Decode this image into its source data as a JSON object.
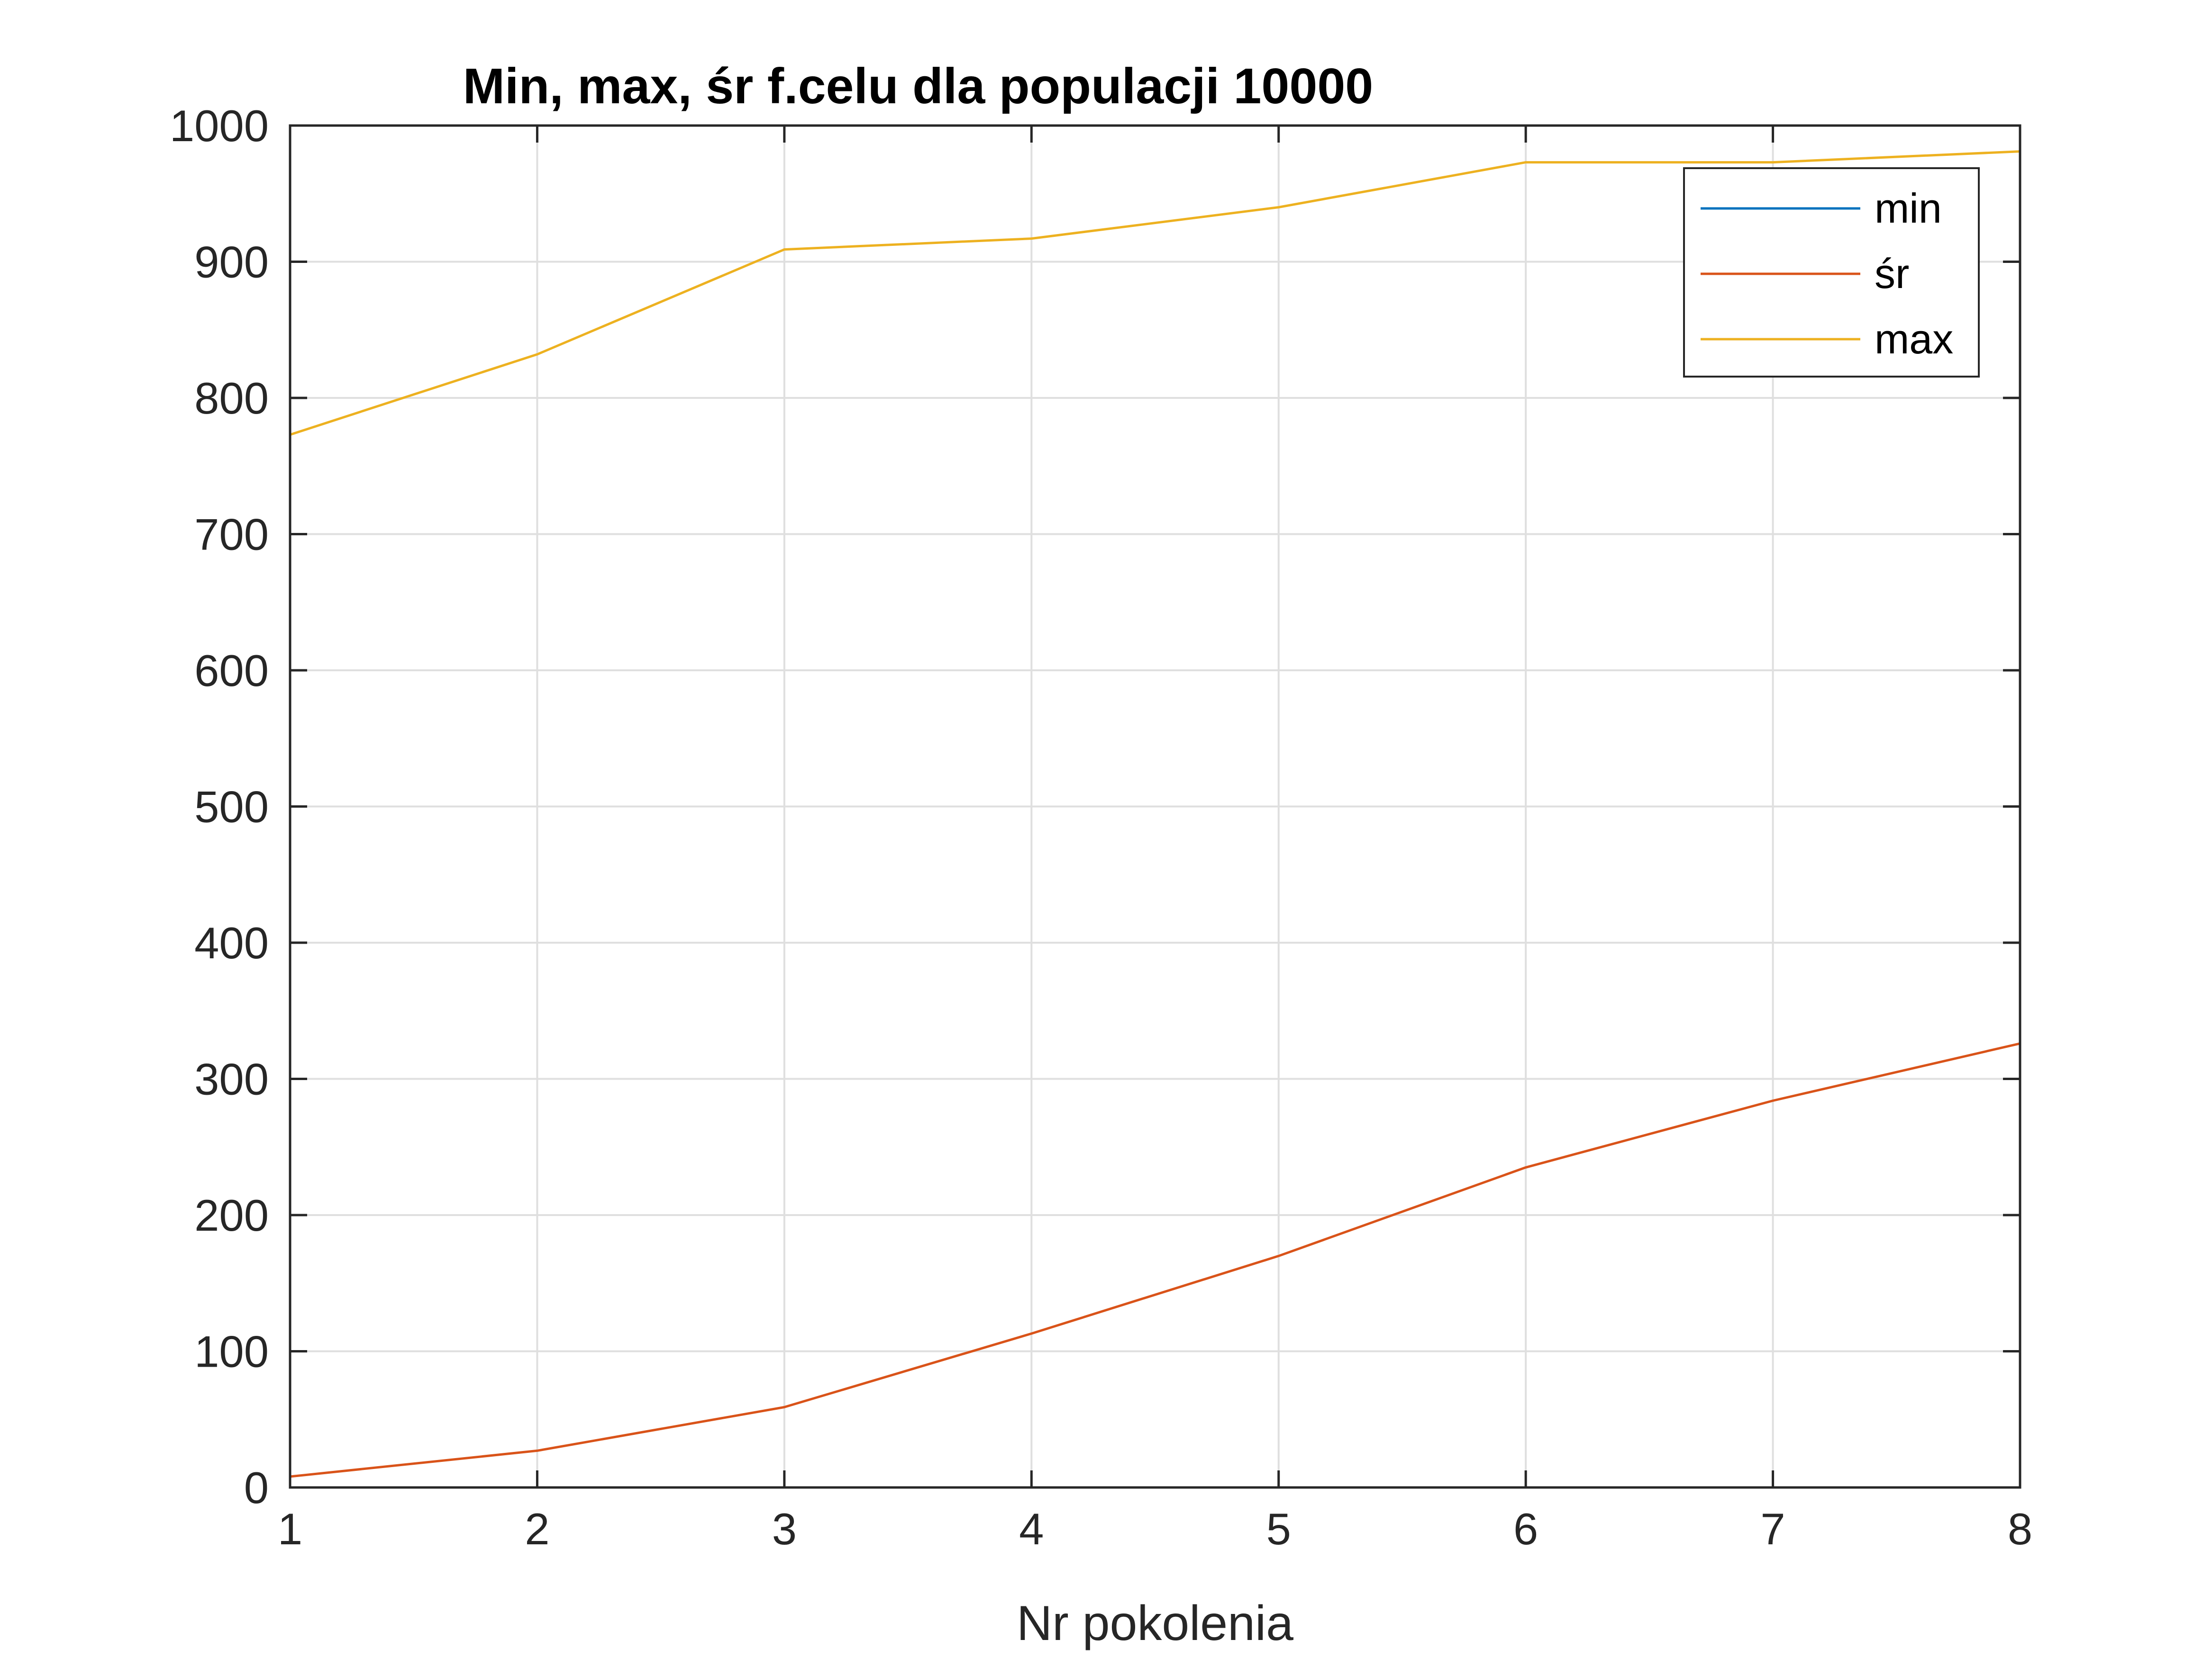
{
  "chart_data": {
    "type": "line",
    "title": "Min, max, śr f.celu dla populacji 10000",
    "xlabel": "Nr pokolenia",
    "ylabel": "",
    "xlim": [
      1,
      8
    ],
    "ylim": [
      0,
      1000
    ],
    "xticks": [
      1,
      2,
      3,
      4,
      5,
      6,
      7,
      8
    ],
    "yticks": [
      0,
      100,
      200,
      300,
      400,
      500,
      600,
      700,
      800,
      900,
      1000
    ],
    "grid": true,
    "legend_position": "top-right",
    "x": [
      1,
      2,
      3,
      4,
      5,
      6,
      7,
      8
    ],
    "series": [
      {
        "name": "min",
        "color": "#0072BD",
        "values": [
          0,
          0,
          0,
          0,
          0,
          0,
          0,
          0
        ]
      },
      {
        "name": "śr",
        "color": "#D95319",
        "values": [
          8,
          27,
          59,
          113,
          170,
          235,
          284,
          326
        ]
      },
      {
        "name": "max",
        "color": "#EDB120",
        "values": [
          773,
          832,
          909,
          917,
          940,
          973,
          973,
          981
        ]
      }
    ]
  }
}
